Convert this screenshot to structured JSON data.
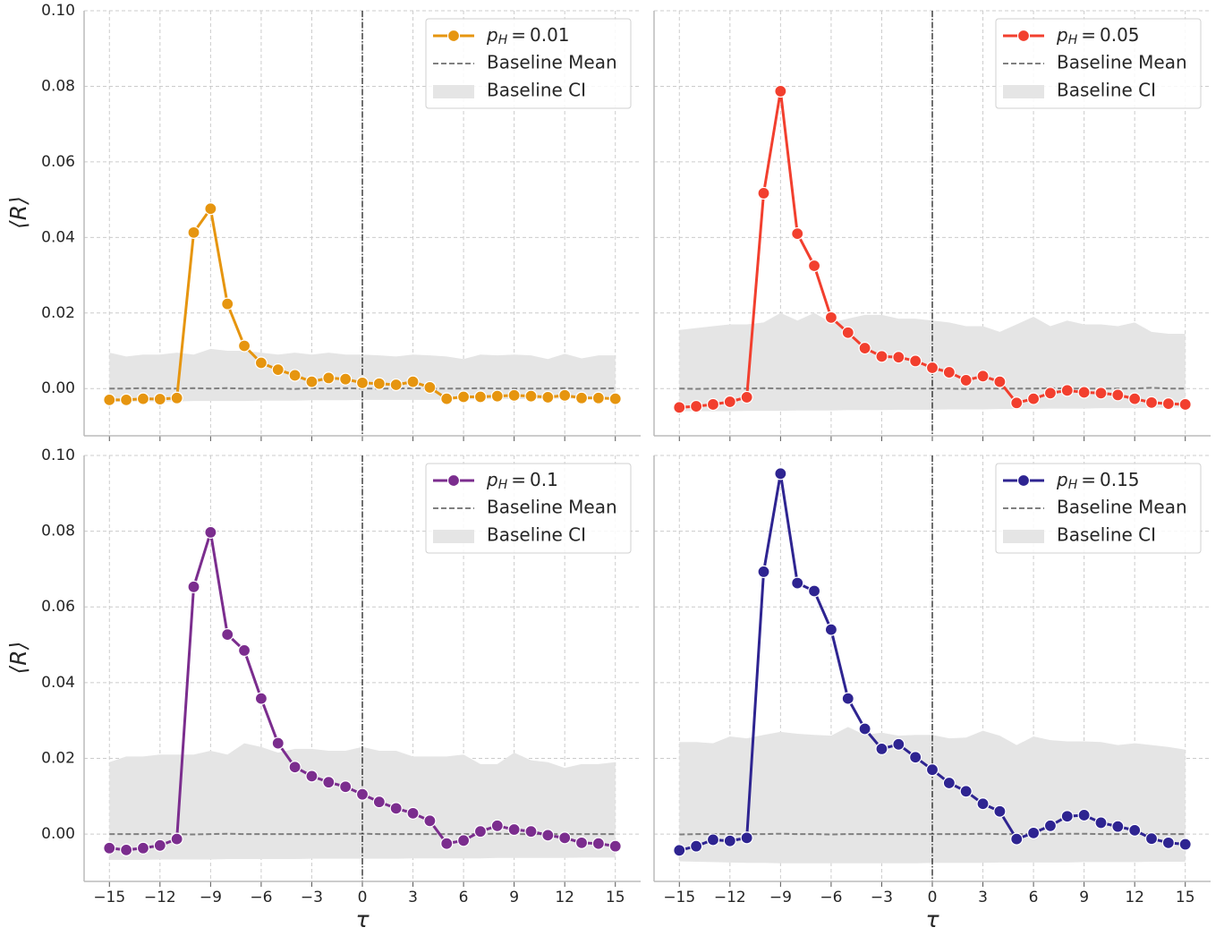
{
  "chart_data": [
    {
      "type": "line",
      "ylabel": "⟨R⟩",
      "x": [
        -15,
        -14,
        -13,
        -12,
        -11,
        -10,
        -9,
        -8,
        -7,
        -6,
        -5,
        -4,
        -3,
        -2,
        -1,
        0,
        1,
        2,
        3,
        4,
        5,
        6,
        7,
        8,
        9,
        10,
        11,
        12,
        13,
        14,
        15
      ],
      "xlim": [
        -16.5,
        16.5
      ],
      "ylim": [
        -0.0125,
        0.1
      ],
      "xticks": [
        {
          "value": -15,
          "label": "−15"
        },
        {
          "value": -12,
          "label": "−12"
        },
        {
          "value": -9,
          "label": "−9"
        },
        {
          "value": -6,
          "label": "−6"
        },
        {
          "value": -3,
          "label": "−3"
        },
        0,
        3,
        6,
        9,
        12,
        15
      ],
      "yticks": [
        {
          "value": 0,
          "label": "0.00"
        },
        {
          "value": 0.02,
          "label": "0.02"
        },
        {
          "value": 0.04,
          "label": "0.04"
        },
        {
          "value": 0.06,
          "label": "0.06"
        },
        {
          "value": 0.08,
          "label": "0.08"
        },
        {
          "value": 0.1,
          "label": "0.10"
        }
      ],
      "grid": true,
      "vline": 0,
      "legend": "upper right",
      "series": [
        {
          "name": "p_H = 0.01",
          "color": "#e6950f",
          "values": [
            -0.003,
            -0.003,
            -0.0027,
            -0.0028,
            -0.0025,
            0.0413,
            0.0476,
            0.0224,
            0.0113,
            0.0068,
            0.005,
            0.0035,
            0.0018,
            0.0028,
            0.0025,
            0.0015,
            0.0013,
            0.001,
            0.0018,
            0.0003,
            -0.0027,
            -0.0022,
            -0.0022,
            -0.002,
            -0.0018,
            -0.002,
            -0.0023,
            -0.0018,
            -0.0025,
            -0.0025,
            -0.0027
          ]
        }
      ],
      "baseline_mean": {
        "name": "Baseline Mean",
        "color": "#808080",
        "values": [
          0,
          0,
          0.0001,
          0,
          0,
          0.0001,
          0,
          0.0001,
          0,
          0,
          0,
          -0.0001,
          0.0001,
          0,
          0.0001,
          0,
          0,
          0,
          0.0001,
          0,
          0,
          0,
          0.0001,
          0,
          0,
          0,
          0,
          0.0001,
          0,
          0,
          0.0001
        ]
      },
      "baseline_ci": {
        "name": "Baseline CI",
        "color": "#e5e5e5",
        "upper": [
          0.0095,
          0.0085,
          0.009,
          0.009,
          0.0095,
          0.009,
          0.0105,
          0.01,
          0.01,
          0.0095,
          0.009,
          0.0095,
          0.009,
          0.0095,
          0.009,
          0.009,
          0.0088,
          0.0085,
          0.009,
          0.0088,
          0.0085,
          0.0078,
          0.009,
          0.0088,
          0.009,
          0.0088,
          0.0078,
          0.0092,
          0.008,
          0.0088,
          0.0088
        ],
        "lower": [
          -0.0035,
          -0.0035,
          -0.0034,
          -0.0034,
          -0.0034,
          -0.0033,
          -0.0033,
          -0.0033,
          -0.0033,
          -0.0032,
          -0.0032,
          -0.0032,
          -0.0031,
          -0.0031,
          -0.0031,
          -0.003,
          -0.003,
          -0.003,
          -0.003,
          -0.003,
          -0.0029,
          -0.0029,
          -0.0029,
          -0.0028,
          -0.0028,
          -0.0028,
          -0.0027,
          -0.0027,
          -0.0026,
          -0.0026,
          -0.0025
        ]
      }
    },
    {
      "type": "line",
      "x": [
        -15,
        -14,
        -13,
        -12,
        -11,
        -10,
        -9,
        -8,
        -7,
        -6,
        -5,
        -4,
        -3,
        -2,
        -1,
        0,
        1,
        2,
        3,
        4,
        5,
        6,
        7,
        8,
        9,
        10,
        11,
        12,
        13,
        14,
        15
      ],
      "xlim": [
        -16.5,
        16.5
      ],
      "ylim": [
        -0.0125,
        0.1
      ],
      "xticks": [
        {
          "value": -15,
          "label": "−15"
        },
        {
          "value": -12,
          "label": "−12"
        },
        {
          "value": -9,
          "label": "−9"
        },
        {
          "value": -6,
          "label": "−6"
        },
        {
          "value": -3,
          "label": "−3"
        },
        0,
        3,
        6,
        9,
        12,
        15
      ],
      "yticks": [
        {
          "value": 0,
          "label": "0.00"
        },
        {
          "value": 0.02,
          "label": "0.02"
        },
        {
          "value": 0.04,
          "label": "0.04"
        },
        {
          "value": 0.06,
          "label": "0.06"
        },
        {
          "value": 0.08,
          "label": "0.08"
        },
        {
          "value": 0.1,
          "label": "0.10"
        }
      ],
      "grid": true,
      "vline": 0,
      "legend": "upper right",
      "series": [
        {
          "name": "p_H = 0.05",
          "color": "#f23f2e",
          "values": [
            -0.005,
            -0.0047,
            -0.0042,
            -0.0035,
            -0.0023,
            0.0517,
            0.0787,
            0.041,
            0.0325,
            0.0188,
            0.0148,
            0.0107,
            0.0085,
            0.0083,
            0.0073,
            0.0055,
            0.0043,
            0.0022,
            0.0033,
            0.0018,
            -0.0038,
            -0.0027,
            -0.0012,
            -0.0005,
            -0.001,
            -0.0012,
            -0.0017,
            -0.0027,
            -0.0037,
            -0.004,
            -0.0042
          ]
        }
      ],
      "baseline_mean": {
        "name": "Baseline Mean",
        "color": "#808080",
        "values": [
          0,
          -0.0001,
          0,
          0,
          0,
          0.0001,
          0,
          0,
          0.0001,
          0,
          0,
          0,
          0,
          0.0001,
          0,
          0,
          0,
          -0.0001,
          0,
          0,
          0,
          0,
          0.0001,
          0,
          0,
          0,
          0,
          0,
          0.0002,
          0,
          0
        ]
      },
      "baseline_ci": {
        "name": "Baseline CI",
        "color": "#e5e5e5",
        "upper": [
          0.0155,
          0.016,
          0.0165,
          0.017,
          0.017,
          0.0175,
          0.02,
          0.018,
          0.02,
          0.0175,
          0.0185,
          0.0195,
          0.0195,
          0.0185,
          0.0185,
          0.018,
          0.0175,
          0.0165,
          0.0165,
          0.015,
          0.017,
          0.019,
          0.0165,
          0.018,
          0.017,
          0.017,
          0.0165,
          0.0175,
          0.015,
          0.0145,
          0.0145
        ],
        "lower": [
          -0.006,
          -0.006,
          -0.006,
          -0.006,
          -0.0059,
          -0.0059,
          -0.0059,
          -0.0058,
          -0.0058,
          -0.0058,
          -0.0057,
          -0.0057,
          -0.0057,
          -0.0056,
          -0.0056,
          -0.0056,
          -0.0055,
          -0.0055,
          -0.0055,
          -0.0054,
          -0.0054,
          -0.0054,
          -0.0053,
          -0.0053,
          -0.0053,
          -0.0052,
          -0.0052,
          -0.0052,
          -0.0051,
          -0.0051,
          -0.005
        ]
      }
    },
    {
      "type": "line",
      "ylabel": "⟨R⟩",
      "xlabel": "τ",
      "x": [
        -15,
        -14,
        -13,
        -12,
        -11,
        -10,
        -9,
        -8,
        -7,
        -6,
        -5,
        -4,
        -3,
        -2,
        -1,
        0,
        1,
        2,
        3,
        4,
        5,
        6,
        7,
        8,
        9,
        10,
        11,
        12,
        13,
        14,
        15
      ],
      "xlim": [
        -16.5,
        16.5
      ],
      "ylim": [
        -0.0125,
        0.1
      ],
      "xticks": [
        {
          "value": -15,
          "label": "−15"
        },
        {
          "value": -12,
          "label": "−12"
        },
        {
          "value": -9,
          "label": "−9"
        },
        {
          "value": -6,
          "label": "−6"
        },
        {
          "value": -3,
          "label": "−3"
        },
        0,
        3,
        6,
        9,
        12,
        15
      ],
      "yticks": [
        {
          "value": 0,
          "label": "0.00"
        },
        {
          "value": 0.02,
          "label": "0.02"
        },
        {
          "value": 0.04,
          "label": "0.04"
        },
        {
          "value": 0.06,
          "label": "0.06"
        },
        {
          "value": 0.08,
          "label": "0.08"
        },
        {
          "value": 0.1,
          "label": "0.10"
        }
      ],
      "grid": true,
      "vline": 0,
      "legend": "upper right",
      "series": [
        {
          "name": "p_H = 0.1",
          "color": "#7b2d8e",
          "values": [
            -0.0037,
            -0.0042,
            -0.0037,
            -0.003,
            -0.0013,
            0.0653,
            0.0797,
            0.0527,
            0.0485,
            0.0358,
            0.024,
            0.0177,
            0.0153,
            0.0137,
            0.0125,
            0.0105,
            0.0085,
            0.0068,
            0.0055,
            0.0035,
            -0.0025,
            -0.0017,
            0.0007,
            0.0022,
            0.0012,
            0.0007,
            -0.0003,
            -0.001,
            -0.0023,
            -0.0025,
            -0.0032
          ]
        }
      ],
      "baseline_mean": {
        "name": "Baseline Mean",
        "color": "#808080",
        "values": [
          0,
          0,
          0,
          0.0001,
          0,
          -0.0001,
          0,
          0.0001,
          0,
          0,
          0,
          0,
          0,
          0,
          0.0001,
          0.0001,
          0,
          0,
          0,
          0,
          0,
          0,
          0,
          0.0001,
          0,
          0,
          0,
          0,
          0,
          0,
          0
        ]
      },
      "baseline_ci": {
        "name": "Baseline CI",
        "color": "#e5e5e5",
        "upper": [
          0.019,
          0.0205,
          0.0205,
          0.021,
          0.021,
          0.021,
          0.022,
          0.021,
          0.024,
          0.023,
          0.0215,
          0.0225,
          0.0225,
          0.022,
          0.022,
          0.023,
          0.022,
          0.022,
          0.0205,
          0.0205,
          0.0205,
          0.021,
          0.0185,
          0.0185,
          0.0215,
          0.0195,
          0.019,
          0.0175,
          0.0185,
          0.0185,
          0.019
        ],
        "lower": [
          -0.0068,
          -0.0068,
          -0.0068,
          -0.0067,
          -0.0067,
          -0.0067,
          -0.0067,
          -0.0066,
          -0.0066,
          -0.0066,
          -0.0066,
          -0.0066,
          -0.0065,
          -0.0065,
          -0.0065,
          -0.0065,
          -0.0065,
          -0.0065,
          -0.0064,
          -0.0064,
          -0.0064,
          -0.0064,
          -0.0064,
          -0.0063,
          -0.0063,
          -0.0063,
          -0.0063,
          -0.0063,
          -0.0062,
          -0.0062,
          -0.0062
        ]
      }
    },
    {
      "type": "line",
      "xlabel": "τ",
      "x": [
        -15,
        -14,
        -13,
        -12,
        -11,
        -10,
        -9,
        -8,
        -7,
        -6,
        -5,
        -4,
        -3,
        -2,
        -1,
        0,
        1,
        2,
        3,
        4,
        5,
        6,
        7,
        8,
        9,
        10,
        11,
        12,
        13,
        14,
        15
      ],
      "xlim": [
        -16.5,
        16.5
      ],
      "ylim": [
        -0.0125,
        0.1
      ],
      "xticks": [
        {
          "value": -15,
          "label": "−15"
        },
        {
          "value": -12,
          "label": "−12"
        },
        {
          "value": -9,
          "label": "−9"
        },
        {
          "value": -6,
          "label": "−6"
        },
        {
          "value": -3,
          "label": "−3"
        },
        0,
        3,
        6,
        9,
        12,
        15
      ],
      "yticks": [
        {
          "value": 0,
          "label": "0.00"
        },
        {
          "value": 0.02,
          "label": "0.02"
        },
        {
          "value": 0.04,
          "label": "0.04"
        },
        {
          "value": 0.06,
          "label": "0.06"
        },
        {
          "value": 0.08,
          "label": "0.08"
        },
        {
          "value": 0.1,
          "label": "0.10"
        }
      ],
      "grid": true,
      "vline": 0,
      "legend": "upper right",
      "series": [
        {
          "name": "p_H = 0.15",
          "color": "#2e2491",
          "values": [
            -0.0043,
            -0.0032,
            -0.0015,
            -0.0018,
            -0.001,
            0.0693,
            0.0952,
            0.0663,
            0.0642,
            0.054,
            0.0358,
            0.0278,
            0.0225,
            0.0237,
            0.0203,
            0.017,
            0.0135,
            0.0113,
            0.008,
            0.006,
            -0.0013,
            0.0003,
            0.0022,
            0.0047,
            0.005,
            0.003,
            0.002,
            0.001,
            -0.0012,
            -0.0023,
            -0.0027
          ]
        }
      ],
      "baseline_mean": {
        "name": "Baseline Mean",
        "color": "#808080",
        "values": [
          -0.0001,
          0,
          0,
          0,
          0,
          0,
          0.0001,
          0,
          0,
          -0.0001,
          0,
          0,
          0,
          0,
          0,
          0,
          0,
          0,
          0.0001,
          0,
          0,
          0,
          0,
          0.0001,
          0.0001,
          0,
          0,
          0.0001,
          0,
          0,
          0
        ]
      },
      "baseline_ci": {
        "name": "Baseline CI",
        "color": "#e5e5e5",
        "upper": [
          0.0243,
          0.0243,
          0.024,
          0.0258,
          0.0253,
          0.0262,
          0.027,
          0.0265,
          0.0262,
          0.026,
          0.0283,
          0.0262,
          0.0268,
          0.026,
          0.0262,
          0.0262,
          0.0253,
          0.0255,
          0.0273,
          0.026,
          0.0235,
          0.0258,
          0.0248,
          0.0245,
          0.0245,
          0.0243,
          0.0235,
          0.024,
          0.0235,
          0.023,
          0.0223
        ],
        "lower": [
          -0.0072,
          -0.0073,
          -0.0074,
          -0.0075,
          -0.0076,
          -0.0076,
          -0.0077,
          -0.0077,
          -0.0077,
          -0.0077,
          -0.0077,
          -0.0077,
          -0.0077,
          -0.0077,
          -0.0077,
          -0.0076,
          -0.0076,
          -0.0076,
          -0.0076,
          -0.0075,
          -0.0075,
          -0.0075,
          -0.0075,
          -0.0075,
          -0.0074,
          -0.0074,
          -0.0074,
          -0.0074,
          -0.0073,
          -0.0073,
          -0.0073
        ]
      }
    }
  ]
}
